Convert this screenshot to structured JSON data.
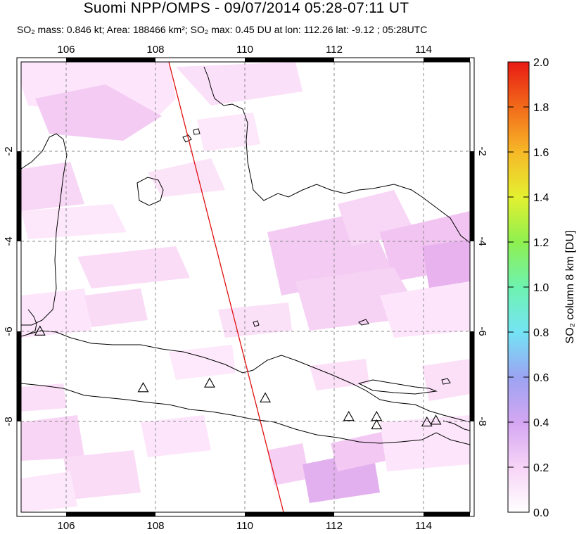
{
  "header": {
    "title": "Suomi NPP/OMPS - 09/07/2014 05:28-07:11 UT",
    "subtitle": {
      "mass": "SO₂ mass: 0.846 kt; Area: 188466 km²; SO₂ max: 0.45 DU at lon: 112.26 lat: -9.12 ; 05:28UTC"
    }
  },
  "map": {
    "lon_range": [
      105,
      115
    ],
    "lat_range": [
      -10,
      -0.3
    ],
    "lon_ticks": [
      "106",
      "108",
      "110",
      "112",
      "114"
    ],
    "lat_ticks": [
      "-2",
      "-4",
      "-6",
      "-8"
    ],
    "grid": "dashed",
    "orbit_track_color": "#e01010",
    "volcano_marker": "triangle-icon",
    "volcanoes": [
      {
        "lon": 105.42,
        "lat": -6.1
      },
      {
        "lon": 107.72,
        "lat": -7.32
      },
      {
        "lon": 109.2,
        "lat": -7.22
      },
      {
        "lon": 110.44,
        "lat": -7.54
      },
      {
        "lon": 112.3,
        "lat": -7.94
      },
      {
        "lon": 112.92,
        "lat": -7.94
      },
      {
        "lon": 112.92,
        "lat": -8.12
      },
      {
        "lon": 114.04,
        "lat": -8.06
      },
      {
        "lon": 114.24,
        "lat": -8.02
      }
    ]
  },
  "colorbar": {
    "label": "SO₂ column 8 km [DU]",
    "ticks": [
      "2.0",
      "1.8",
      "1.6",
      "1.4",
      "1.2",
      "1.0",
      "0.8",
      "0.6",
      "0.4",
      "0.2",
      "0.0"
    ],
    "colors": [
      "#ffffff",
      "#f7d4f7",
      "#d4a6f2",
      "#9ba4f2",
      "#74e4f4",
      "#6ef2b0",
      "#8ef050",
      "#e4f030",
      "#f7b828",
      "#f26a1a",
      "#e81a14"
    ]
  }
}
